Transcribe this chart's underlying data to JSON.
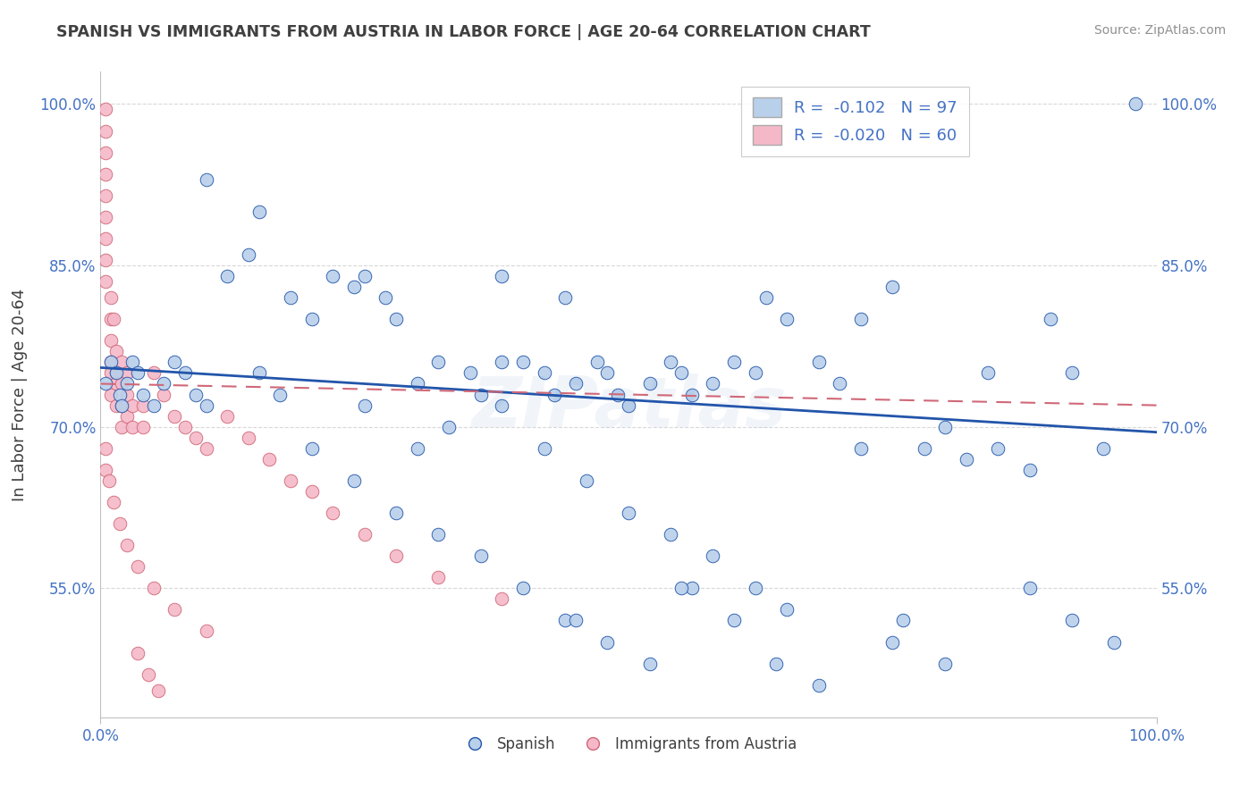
{
  "title": "SPANISH VS IMMIGRANTS FROM AUSTRIA IN LABOR FORCE | AGE 20-64 CORRELATION CHART",
  "source": "Source: ZipAtlas.com",
  "ylabel": "In Labor Force | Age 20-64",
  "xlim": [
    0.0,
    1.0
  ],
  "ylim": [
    0.43,
    1.03
  ],
  "yticks": [
    0.55,
    0.7,
    0.85,
    1.0
  ],
  "ytick_labels": [
    "55.0%",
    "70.0%",
    "85.0%",
    "100.0%"
  ],
  "xtick_labels": [
    "0.0%",
    "100.0%"
  ],
  "legend_r_blue": "-0.102",
  "legend_n_blue": "97",
  "legend_r_pink": "-0.020",
  "legend_n_pink": "60",
  "blue_color": "#b8d0ea",
  "pink_color": "#f5b8c8",
  "trend_blue": "#2255aa",
  "trend_pink": "#d06878",
  "title_color": "#404040",
  "grid_color": "#d8d8d8",
  "source_color": "#909090",
  "legend_text_color": "#4472c4",
  "watermark": "ZIPatlas",
  "blue_trend_start": 0.755,
  "blue_trend_end": 0.695,
  "pink_trend_start": 0.74,
  "pink_trend_end": 0.72,
  "blue_x": [
    0.005,
    0.01,
    0.015,
    0.018,
    0.02,
    0.025,
    0.03,
    0.035,
    0.04,
    0.05,
    0.06,
    0.07,
    0.08,
    0.09,
    0.1,
    0.12,
    0.14,
    0.15,
    0.17,
    0.18,
    0.2,
    0.22,
    0.24,
    0.25,
    0.27,
    0.28,
    0.3,
    0.32,
    0.35,
    0.36,
    0.38,
    0.4,
    0.42,
    0.43,
    0.44,
    0.45,
    0.47,
    0.48,
    0.49,
    0.5,
    0.52,
    0.54,
    0.55,
    0.56,
    0.58,
    0.6,
    0.62,
    0.63,
    0.65,
    0.68,
    0.7,
    0.72,
    0.75,
    0.78,
    0.8,
    0.82,
    0.85,
    0.88,
    0.9,
    0.92,
    0.95,
    0.98,
    0.25,
    0.3,
    0.33,
    0.38,
    0.42,
    0.46,
    0.5,
    0.54,
    0.58,
    0.62,
    0.2,
    0.24,
    0.28,
    0.32,
    0.36,
    0.4,
    0.44,
    0.48,
    0.52,
    0.56,
    0.6,
    0.64,
    0.68,
    0.72,
    0.76,
    0.8,
    0.84,
    0.88,
    0.92,
    0.96,
    0.1,
    0.15,
    0.38,
    0.45,
    0.55,
    0.65,
    0.75
  ],
  "blue_y": [
    0.74,
    0.76,
    0.75,
    0.73,
    0.72,
    0.74,
    0.76,
    0.75,
    0.73,
    0.72,
    0.74,
    0.76,
    0.75,
    0.73,
    0.72,
    0.84,
    0.86,
    0.75,
    0.73,
    0.82,
    0.8,
    0.84,
    0.83,
    0.84,
    0.82,
    0.8,
    0.74,
    0.76,
    0.75,
    0.73,
    0.84,
    0.76,
    0.75,
    0.73,
    0.82,
    0.74,
    0.76,
    0.75,
    0.73,
    0.72,
    0.74,
    0.76,
    0.75,
    0.73,
    0.74,
    0.76,
    0.75,
    0.82,
    0.8,
    0.76,
    0.74,
    0.8,
    0.83,
    0.68,
    0.7,
    0.67,
    0.68,
    0.66,
    0.8,
    0.75,
    0.68,
    1.0,
    0.72,
    0.68,
    0.7,
    0.72,
    0.68,
    0.65,
    0.62,
    0.6,
    0.58,
    0.55,
    0.68,
    0.65,
    0.62,
    0.6,
    0.58,
    0.55,
    0.52,
    0.5,
    0.48,
    0.55,
    0.52,
    0.48,
    0.46,
    0.68,
    0.52,
    0.48,
    0.75,
    0.55,
    0.52,
    0.5,
    0.93,
    0.9,
    0.76,
    0.52,
    0.55,
    0.53,
    0.5
  ],
  "pink_x": [
    0.005,
    0.005,
    0.005,
    0.005,
    0.005,
    0.005,
    0.005,
    0.005,
    0.005,
    0.01,
    0.01,
    0.01,
    0.01,
    0.01,
    0.01,
    0.015,
    0.015,
    0.015,
    0.015,
    0.02,
    0.02,
    0.02,
    0.02,
    0.025,
    0.025,
    0.025,
    0.03,
    0.03,
    0.04,
    0.04,
    0.05,
    0.06,
    0.07,
    0.08,
    0.09,
    0.1,
    0.12,
    0.14,
    0.16,
    0.18,
    0.2,
    0.22,
    0.25,
    0.28,
    0.32,
    0.38,
    0.035,
    0.045,
    0.055,
    0.012,
    0.005,
    0.005,
    0.008,
    0.012,
    0.018,
    0.025,
    0.035,
    0.05,
    0.07,
    0.1
  ],
  "pink_y": [
    0.995,
    0.975,
    0.955,
    0.935,
    0.915,
    0.895,
    0.875,
    0.855,
    0.835,
    0.82,
    0.8,
    0.78,
    0.76,
    0.75,
    0.73,
    0.77,
    0.75,
    0.74,
    0.72,
    0.76,
    0.74,
    0.72,
    0.7,
    0.75,
    0.73,
    0.71,
    0.72,
    0.7,
    0.72,
    0.7,
    0.75,
    0.73,
    0.71,
    0.7,
    0.69,
    0.68,
    0.71,
    0.69,
    0.67,
    0.65,
    0.64,
    0.62,
    0.6,
    0.58,
    0.56,
    0.54,
    0.49,
    0.47,
    0.455,
    0.8,
    0.68,
    0.66,
    0.65,
    0.63,
    0.61,
    0.59,
    0.57,
    0.55,
    0.53,
    0.51
  ]
}
